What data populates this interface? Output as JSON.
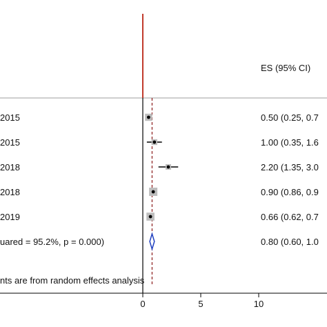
{
  "chart_data": {
    "type": "forest",
    "es_header": "ES (95% CI)",
    "x_ticks": [
      "0",
      "5",
      "10"
    ],
    "xlim": [
      0,
      16
    ],
    "reference_line_x": 0,
    "overall_line_x": 0.8,
    "studies": [
      {
        "label": "2015",
        "es": 0.5,
        "ci_low": 0.25,
        "ci_high": 0.75,
        "weight_box": 0.55,
        "text": "0.50 (0.25, 0.7"
      },
      {
        "label": "2015",
        "es": 1.0,
        "ci_low": 0.35,
        "ci_high": 1.65,
        "weight_box": 0.3,
        "text": "1.00 (0.35, 1.6"
      },
      {
        "label": " 2018",
        "es": 2.2,
        "ci_low": 1.35,
        "ci_high": 3.05,
        "weight_box": 0.25,
        "text": "2.20 (1.35, 3.0"
      },
      {
        "label": "2018",
        "es": 0.9,
        "ci_low": 0.86,
        "ci_high": 0.94,
        "weight_box": 0.75,
        "text": "0.90 (0.86, 0.9"
      },
      {
        "label": "2019",
        "es": 0.66,
        "ci_low": 0.62,
        "ci_high": 0.7,
        "weight_box": 0.7,
        "text": "0.66 (0.62, 0.7"
      }
    ],
    "overall": {
      "label": "uared = 95.2%, p = 0.000)",
      "es": 0.8,
      "ci_low": 0.6,
      "ci_high": 1.0,
      "text": "0.80 (0.60, 1.0"
    },
    "footnote": "nts are from random effects analysis",
    "colors": {
      "reference_line": "#c0392b",
      "overall_line": "#8b1a1a",
      "box": "#bdbdbd",
      "diamond": "#1f3fbf",
      "axis": "#000000",
      "divider": "#9e9e9e"
    }
  }
}
